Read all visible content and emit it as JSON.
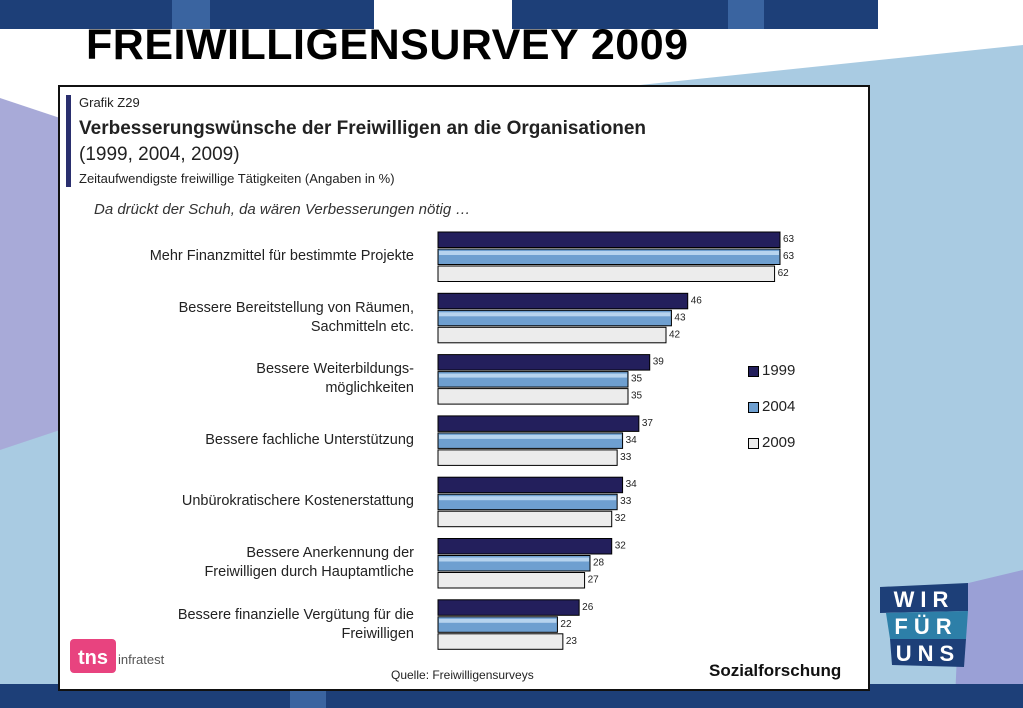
{
  "slide": {
    "title": "FREIWILLIGENSURVEY 2009"
  },
  "chart_panel": {
    "grafik_label": "Grafik Z29",
    "title": "Verbesserungswünsche der Freiwilligen an die Organisationen",
    "years_line": "(1999, 2004, 2009)",
    "subtitle": "Zeitaufwendigste freiwillige Tätigkeiten (Angaben in %)",
    "question": "Da drückt der Schuh, da wären Verbesserungen nötig …",
    "source": "Quelle: Freiwilligensurveys",
    "brand": "Sozialforschung"
  },
  "logos": {
    "tns_text": "tns",
    "infratest_text": "infratest",
    "wfu_row1": "WIR",
    "wfu_row2": "FÜR",
    "wfu_row3": "UNS"
  },
  "colors": {
    "series_1999": "#231f5c",
    "series_2004": "#6e9fd0",
    "series_2009": "#ececec",
    "tns_pink": "#e8437f",
    "wfu_navy": "#1d3f78",
    "wfu_teal": "#2d7fa8"
  },
  "chart_data": {
    "type": "bar",
    "orientation": "horizontal",
    "categories": [
      [
        "Mehr Finanzmittel für bestimmte Projekte"
      ],
      [
        "Bessere Bereitstellung von Räumen,",
        "Sachmitteln etc."
      ],
      [
        "Bessere Weiterbildungs-",
        "möglichkeiten"
      ],
      [
        "Bessere fachliche Unterstützung"
      ],
      [
        "Unbürokratischere Kostenerstattung"
      ],
      [
        "Bessere Anerkennung der",
        "Freiwilligen durch Hauptamtliche"
      ],
      [
        "Bessere finanzielle Vergütung für die",
        "Freiwilligen"
      ]
    ],
    "series": [
      {
        "name": "1999",
        "values": [
          63,
          46,
          39,
          37,
          34,
          32,
          26
        ]
      },
      {
        "name": "2004",
        "values": [
          63,
          43,
          35,
          34,
          33,
          28,
          22
        ]
      },
      {
        "name": "2009",
        "values": [
          62,
          42,
          35,
          33,
          32,
          27,
          23
        ]
      }
    ],
    "value_labels": true,
    "xlim": [
      0,
      63
    ],
    "legend_position": "right"
  }
}
